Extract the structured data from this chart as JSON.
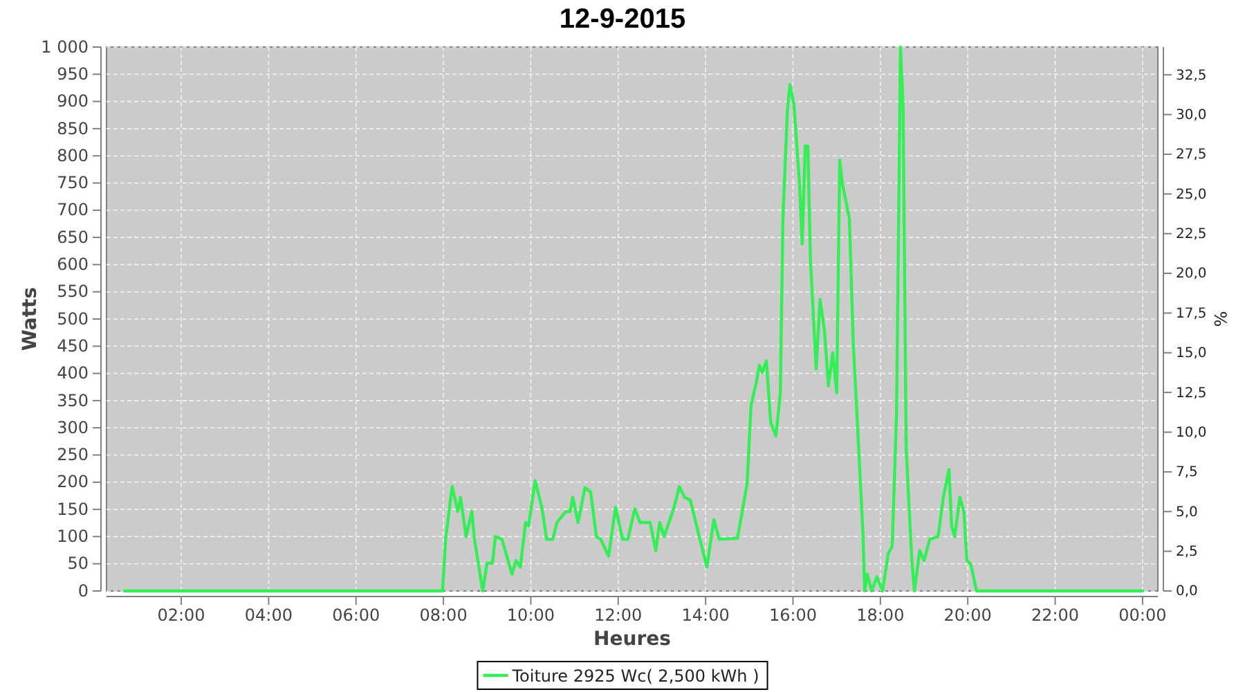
{
  "chart_data": {
    "type": "line",
    "title": "12-9-2015",
    "xlabel": "Heures",
    "ylabel": "Watts",
    "y2label": "%",
    "xlim": [
      0.29,
      24.35
    ],
    "xticks": [
      {
        "value": 2,
        "label": "02:00"
      },
      {
        "value": 4,
        "label": "04:00"
      },
      {
        "value": 6,
        "label": "06:00"
      },
      {
        "value": 8,
        "label": "08:00"
      },
      {
        "value": 10,
        "label": "10:00"
      },
      {
        "value": 12,
        "label": "12:00"
      },
      {
        "value": 14,
        "label": "14:00"
      },
      {
        "value": 16,
        "label": "16:00"
      },
      {
        "value": 18,
        "label": "18:00"
      },
      {
        "value": 20,
        "label": "20:00"
      },
      {
        "value": 22,
        "label": "22:00"
      },
      {
        "value": 24,
        "label": "00:00"
      }
    ],
    "ylim": [
      0,
      1000
    ],
    "yticks": [
      0,
      50,
      100,
      150,
      200,
      250,
      300,
      350,
      400,
      450,
      500,
      550,
      600,
      650,
      700,
      750,
      800,
      850,
      900,
      950,
      {
        "value": 1000,
        "label": "1 000"
      }
    ],
    "y2lim": [
      0,
      34.25
    ],
    "y2ticks": [
      {
        "value": 0,
        "label": "0,0"
      },
      {
        "value": 2.5,
        "label": "2,5"
      },
      {
        "value": 5,
        "label": "5,0"
      },
      {
        "value": 7.5,
        "label": "7,5"
      },
      {
        "value": 10,
        "label": "10,0"
      },
      {
        "value": 12.5,
        "label": "12,5"
      },
      {
        "value": 15,
        "label": "15,0"
      },
      {
        "value": 17.5,
        "label": "17,5"
      },
      {
        "value": 20,
        "label": "20,0"
      },
      {
        "value": 22.5,
        "label": "22,5"
      },
      {
        "value": 25,
        "label": "25,0"
      },
      {
        "value": 27.5,
        "label": "27,5"
      },
      {
        "value": 30,
        "label": "30,0"
      },
      {
        "value": 32.5,
        "label": "32,5"
      }
    ],
    "grid": true,
    "legend": "bottom",
    "marker": "none",
    "line_style": "solid",
    "series": [
      {
        "name": "Toiture 2925 Wc( 2,500 kWh )",
        "color": "#33ee55",
        "x": [
          0.7,
          7.98,
          8.05,
          8.2,
          8.33,
          8.39,
          8.52,
          8.65,
          8.71,
          8.9,
          9.0,
          9.12,
          9.19,
          9.34,
          9.57,
          9.66,
          9.76,
          9.88,
          9.95,
          10.1,
          10.26,
          10.36,
          10.5,
          10.6,
          10.8,
          10.9,
          10.96,
          11.08,
          11.24,
          11.37,
          11.5,
          11.6,
          11.78,
          11.94,
          12.1,
          12.22,
          12.38,
          12.5,
          12.73,
          12.86,
          12.95,
          13.05,
          13.27,
          13.4,
          13.52,
          13.65,
          13.84,
          14.03,
          14.19,
          14.31,
          14.73,
          14.95,
          15.04,
          15.17,
          15.23,
          15.3,
          15.39,
          15.49,
          15.61,
          15.71,
          15.77,
          15.87,
          15.93,
          16.02,
          16.15,
          16.21,
          16.28,
          16.34,
          16.4,
          16.53,
          16.62,
          16.72,
          16.81,
          16.91,
          17.0,
          17.07,
          17.13,
          17.29,
          17.38,
          17.48,
          17.6,
          17.64,
          17.7,
          17.8,
          17.92,
          18.05,
          18.18,
          18.27,
          18.37,
          18.46,
          18.52,
          18.59,
          18.72,
          18.78,
          18.9,
          19.0,
          19.13,
          19.32,
          19.44,
          19.57,
          19.63,
          19.7,
          19.82,
          19.91,
          19.98,
          20.07,
          20.2,
          24.0
        ],
        "values": [
          0,
          0,
          95,
          192,
          146,
          172,
          100,
          146,
          95,
          0,
          51,
          51,
          100,
          95,
          31,
          56,
          44,
          126,
          120,
          203,
          151,
          95,
          95,
          126,
          146,
          146,
          172,
          126,
          190,
          182,
          100,
          95,
          64,
          154,
          95,
          95,
          151,
          126,
          126,
          74,
          126,
          100,
          151,
          192,
          172,
          167,
          105,
          44,
          131,
          95,
          97,
          197,
          341,
          387,
          415,
          402,
          423,
          310,
          285,
          364,
          685,
          880,
          931,
          895,
          749,
          638,
          818,
          818,
          608,
          408,
          536,
          479,
          377,
          438,
          364,
          792,
          749,
          685,
          454,
          300,
          108,
          0,
          31,
          0,
          26,
          0,
          69,
          82,
          326,
          1000,
          890,
          262,
          56,
          0,
          74,
          56,
          95,
          100,
          172,
          223,
          120,
          100,
          172,
          146,
          56,
          49,
          0,
          0
        ]
      }
    ]
  }
}
